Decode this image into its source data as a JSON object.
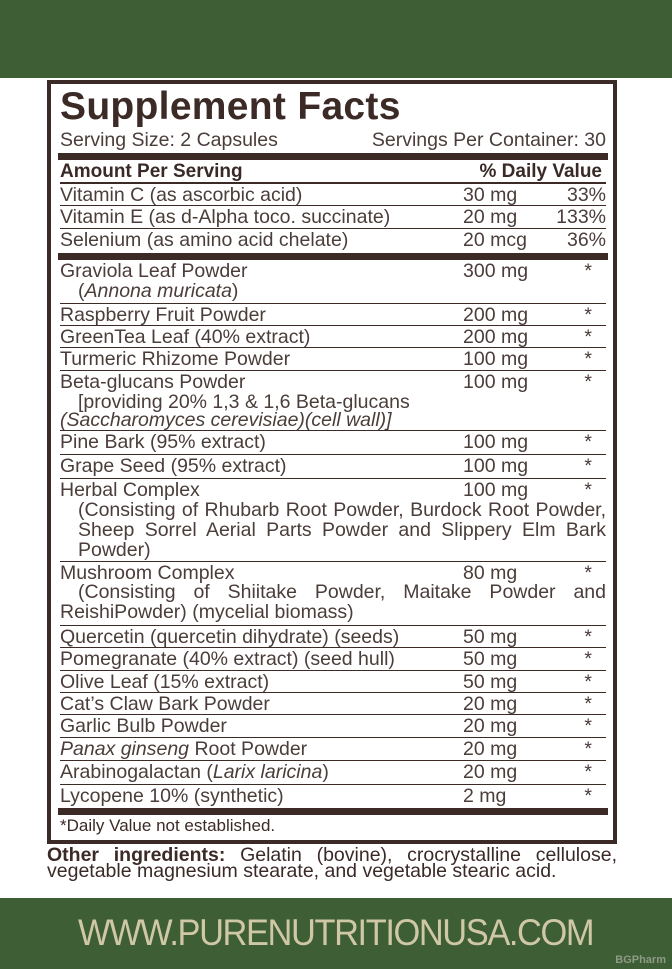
{
  "title": "Supplement Facts",
  "serving_size": "Serving Size: 2 Capsules",
  "servings_per_container": "Servings Per Container: 30",
  "header": {
    "amount": "Amount Per Serving",
    "dv": "% Daily Value"
  },
  "vitamins": [
    {
      "name": [
        {
          "t": "Vitamin C (as ascorbic acid)"
        }
      ],
      "amount": "30 mg",
      "dv": "33%"
    },
    {
      "name": [
        {
          "t": "Vitamin E (as d-Alpha toco. succinate)"
        }
      ],
      "amount": "20 mg",
      "dv": "133%"
    },
    {
      "name": [
        {
          "t": "Selenium (as amino acid chelate)"
        }
      ],
      "amount": "20 mcg",
      "dv": "36%"
    }
  ],
  "ingredients": [
    {
      "name": [
        {
          "t": "Graviola Leaf Powder"
        }
      ],
      "amount": "300 mg",
      "dv": "*",
      "sub": [
        {
          "t": "("
        },
        {
          "t": "Annona muricata",
          "i": true
        },
        {
          "t": ")"
        }
      ]
    },
    {
      "name": [
        {
          "t": "Raspberry Fruit Powder"
        }
      ],
      "amount": "200 mg",
      "dv": "*"
    },
    {
      "name": [
        {
          "t": "GreenTea Leaf (40% extract)"
        }
      ],
      "amount": "200 mg",
      "dv": "*"
    },
    {
      "name": [
        {
          "t": "Turmeric Rhizome Powder"
        }
      ],
      "amount": "100 mg",
      "dv": "*"
    },
    {
      "name": [
        {
          "t": "Beta-glucans Powder"
        }
      ],
      "amount": "100 mg",
      "dv": "*",
      "sub": [
        {
          "t": "[providing 20% 1,3 & 1,6 Beta-glucans"
        }
      ],
      "sub2": [
        {
          "t": "(Saccharomyces cerevisiae)(cell wall)]",
          "i": true
        }
      ]
    },
    {
      "name": [
        {
          "t": "Pine Bark (95% extract)"
        }
      ],
      "amount": "100 mg",
      "dv": "*"
    },
    {
      "name": [
        {
          "t": "Grape Seed (95% extract)"
        }
      ],
      "amount": "100 mg",
      "dv": "*"
    },
    {
      "name": [
        {
          "t": "Herbal Complex"
        }
      ],
      "amount": "100 mg",
      "dv": "*",
      "sub": [
        {
          "t": "(Consisting of Rhubarb Root Powder, Burdock Root Powder, Sheep Sorrel Aerial Parts Powder and Slippery  Elm Bark Powder)"
        }
      ]
    },
    {
      "name": [
        {
          "t": "Mushroom Complex"
        }
      ],
      "amount": "80 mg",
      "dv": "*",
      "sub": [
        {
          "t": "(Consisting of Shiitake Powder, Maitake Powder and ReishiPowder) (mycelial biomass)"
        }
      ]
    },
    {
      "name": [
        {
          "t": "Quercetin (quercetin dihydrate) (seeds)"
        }
      ],
      "amount": "50 mg",
      "dv": "*"
    },
    {
      "name": [
        {
          "t": "Pomegranate (40% extract) (seed hull)"
        }
      ],
      "amount": "50 mg",
      "dv": "*"
    },
    {
      "name": [
        {
          "t": "Olive Leaf (15% extract)"
        }
      ],
      "amount": "50 mg",
      "dv": "*"
    },
    {
      "name": [
        {
          "t": "Cat’s Claw Bark Powder"
        }
      ],
      "amount": "20 mg",
      "dv": "*"
    },
    {
      "name": [
        {
          "t": "Garlic Bulb Powder"
        }
      ],
      "amount": "20 mg",
      "dv": "*"
    },
    {
      "name": [
        {
          "t": "Panax ginseng",
          "i": true
        },
        {
          "t": " Root Powder"
        }
      ],
      "amount": "20 mg",
      "dv": "*"
    },
    {
      "name": [
        {
          "t": "Arabinogalactan ("
        },
        {
          "t": "Larix laricina",
          "i": true
        },
        {
          "t": ")"
        }
      ],
      "amount": "20 mg",
      "dv": "*"
    },
    {
      "name": [
        {
          "t": "Lycopene 10% (synthetic)"
        }
      ],
      "amount": "2 mg",
      "dv": "*"
    }
  ],
  "footnote": "*Daily Value not established.",
  "other_ingredients": {
    "label": "Other ingredients:",
    "text": " Gelatin (bovine), crocrystalline cellulose, vegetable magnesium stearate, and vegetable stearic acid."
  },
  "website": "WWW.PURENUTRITIONUSA.COM",
  "watermark": "BGPharm",
  "colors": {
    "green": "#3e5f36",
    "brown": "#3b2a26",
    "url_text": "#cfc7a5"
  }
}
